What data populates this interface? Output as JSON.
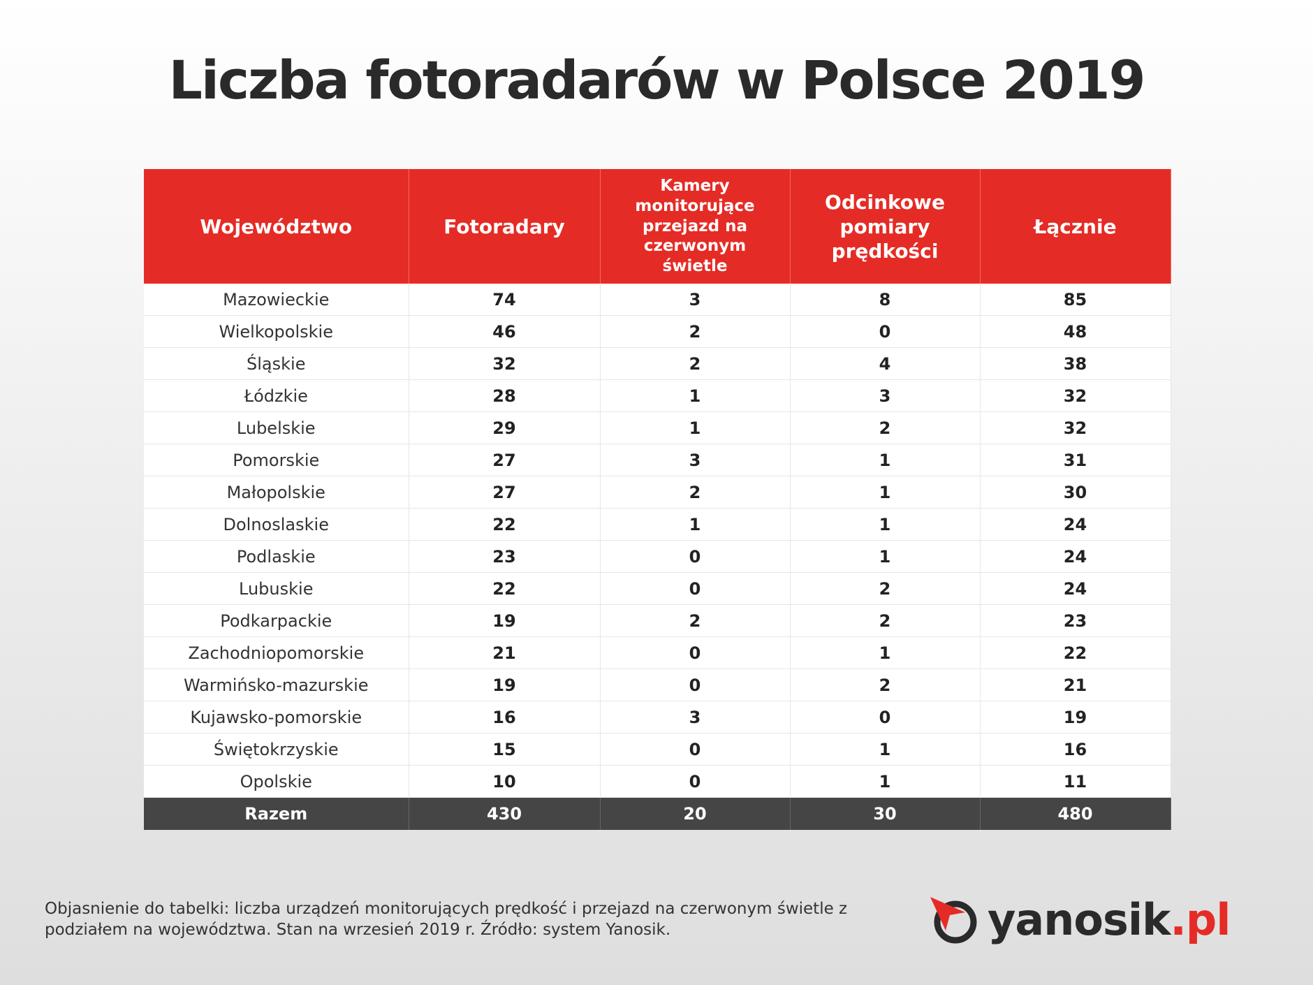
{
  "title": "Liczba fotoradarów w Polsce 2019",
  "table": {
    "header": [
      "Województwo",
      "Fotoradary",
      "Kamery monitorujące przejazd na czerwonym świetle",
      "Odcinkowe pomiary prędkości",
      "Łącznie"
    ],
    "rows": [
      [
        "Mazowieckie",
        74,
        3,
        8,
        85
      ],
      [
        "Wielkopolskie",
        46,
        2,
        0,
        48
      ],
      [
        "Śląskie",
        32,
        2,
        4,
        38
      ],
      [
        "Łódzkie",
        28,
        1,
        3,
        32
      ],
      [
        "Lubelskie",
        29,
        1,
        2,
        32
      ],
      [
        "Pomorskie",
        27,
        3,
        1,
        31
      ],
      [
        "Małopolskie",
        27,
        2,
        1,
        30
      ],
      [
        "Dolnoslaskie",
        22,
        1,
        1,
        24
      ],
      [
        "Podlaskie",
        23,
        0,
        1,
        24
      ],
      [
        "Lubuskie",
        22,
        0,
        2,
        24
      ],
      [
        "Podkarpackie",
        19,
        2,
        2,
        23
      ],
      [
        "Zachodniopomorskie",
        21,
        0,
        1,
        22
      ],
      [
        "Warmińsko-mazurskie",
        19,
        0,
        2,
        21
      ],
      [
        "Kujawsko-pomorskie",
        16,
        3,
        0,
        19
      ],
      [
        "Świętokrzyskie",
        15,
        0,
        1,
        16
      ],
      [
        "Opolskie",
        10,
        0,
        1,
        11
      ]
    ],
    "total": [
      "Razem",
      430,
      20,
      30,
      480
    ]
  },
  "note": "Objasnienie do tabelki: liczba urządzeń monitorujących prędkość i przejazd na czerwonym świetle z podziałem na województwa. Stan na wrzesień 2019 r. Źródło: system Yanosik.",
  "logo": {
    "name": "yanosik",
    "domain": ".pl"
  }
}
